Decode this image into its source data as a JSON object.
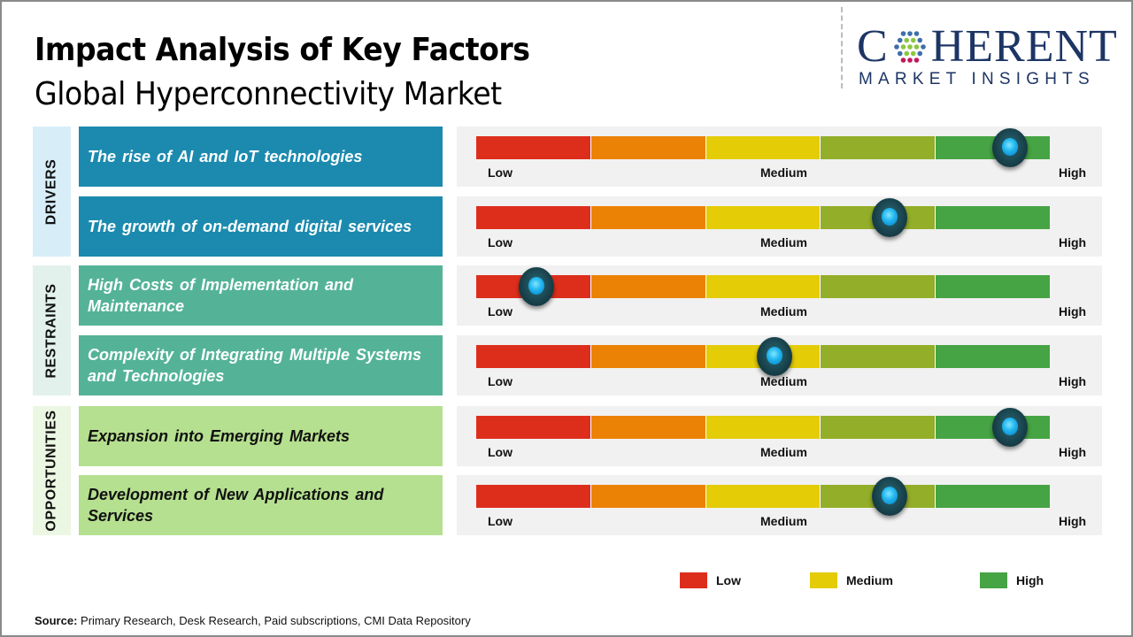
{
  "header": {
    "title": "Impact Analysis of Key Factors",
    "subtitle": "Global Hyperconnectivity Market"
  },
  "logo": {
    "main_left": "C",
    "main_right": "HERENT",
    "sub": "MARKET INSIGHTS"
  },
  "colors": {
    "segments": [
      "#dd2e1c",
      "#ec8205",
      "#e4cc07",
      "#93ae28",
      "#46a444"
    ],
    "drivers_bg": "#1b8aae",
    "drivers_cat_bg": "#d7eef8",
    "restraints_bg": "#54b397",
    "restraints_cat_bg": "#e2f1ec",
    "opportunities_bg": "#b5e08f",
    "opportunities_cat_bg": "#ecf7e3",
    "legend_low": "#dd2e1c",
    "legend_medium": "#e4cc07",
    "legend_high": "#46a444"
  },
  "chart_data": {
    "type": "gauge-table",
    "title": "Impact Analysis of Key Factors",
    "subtitle": "Global Hyperconnectivity Market",
    "scale": {
      "min_label": "Low",
      "mid_label": "Medium",
      "max_label": "High",
      "range": [
        0,
        1
      ],
      "segments": 5
    },
    "categories": [
      {
        "name": "DRIVERS",
        "factors": [
          {
            "label": "The rise of AI and IoT technologies",
            "impact": 0.93
          },
          {
            "label": "The growth of on-demand digital services",
            "impact": 0.72
          }
        ]
      },
      {
        "name": "RESTRAINTS",
        "factors": [
          {
            "label": "High Costs of Implementation and Maintenance",
            "impact": 0.105
          },
          {
            "label": "Complexity of Integrating Multiple Systems and Technologies",
            "impact": 0.52
          }
        ]
      },
      {
        "name": "OPPORTUNITIES",
        "factors": [
          {
            "label": "Expansion into Emerging Markets",
            "impact": 0.93
          },
          {
            "label": "Development of New Applications and Services",
            "impact": 0.72
          }
        ]
      }
    ],
    "legend": [
      {
        "label": "Low",
        "color": "#dd2e1c"
      },
      {
        "label": "Medium",
        "color": "#e4cc07"
      },
      {
        "label": "High",
        "color": "#46a444"
      }
    ],
    "legend_position": "bottom-right"
  },
  "footer": {
    "source_label": "Source:",
    "source_text": " Primary Research, Desk Research, Paid subscriptions, CMI Data Repository"
  }
}
